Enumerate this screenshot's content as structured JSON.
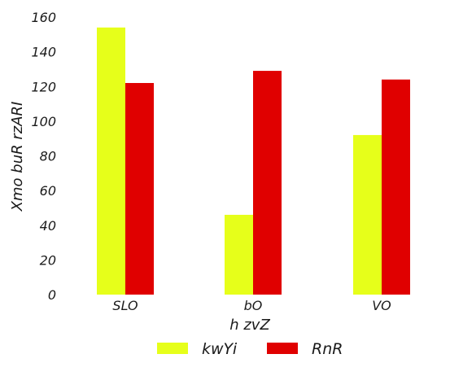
{
  "chart_data": {
    "type": "bar",
    "title": "",
    "xlabel": "h  zvZ",
    "ylabel": "Xmo buR rzARI",
    "categories": [
      "SLO",
      "bO",
      "VO"
    ],
    "series": [
      {
        "name": "kwYi",
        "color": "#e6ff1a",
        "values": [
          154,
          46,
          92
        ]
      },
      {
        "name": "RnR",
        "color": "#e00000",
        "values": [
          122,
          129,
          124
        ]
      }
    ],
    "ylim": [
      0,
      160
    ],
    "yticks": [
      0,
      20,
      40,
      60,
      80,
      100,
      120,
      140,
      160
    ],
    "grid": false,
    "legend_position": "bottom"
  }
}
